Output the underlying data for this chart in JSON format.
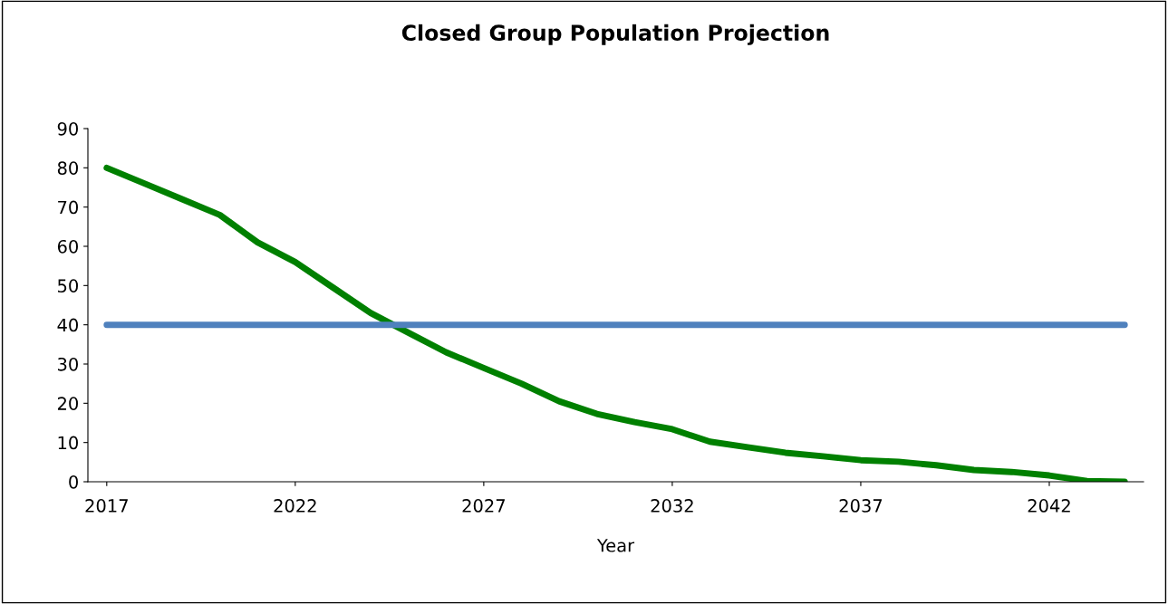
{
  "chart_data": {
    "type": "line",
    "title": "Closed Group Population Projection",
    "xlabel": "Year",
    "categories": [
      "2017",
      null,
      null,
      null,
      null,
      "2022",
      null,
      null,
      null,
      null,
      "2027",
      null,
      null,
      null,
      null,
      "2032",
      null,
      null,
      null,
      null,
      "2037",
      null,
      null,
      null,
      null,
      "2042",
      null,
      null
    ],
    "series": [
      {
        "color": "#008000",
        "values": [
          80,
          76,
          72,
          68,
          61,
          56,
          49.5,
          43,
          38,
          33,
          29,
          25,
          20.5,
          17.3,
          15.2,
          13.4,
          10.2,
          8.8,
          7.4,
          6.5,
          5.5,
          5.1,
          4.2,
          3.0,
          2.5,
          1.6,
          0.2,
          0
        ]
      },
      {
        "color": "#4f81bd",
        "values": [
          40,
          40,
          40,
          40,
          40,
          40,
          40,
          40,
          40,
          40,
          40,
          40,
          40,
          40,
          40,
          40,
          40,
          40,
          40,
          40,
          40,
          40,
          40,
          40,
          40,
          40,
          40,
          40
        ]
      }
    ],
    "ylim": [
      0,
      90
    ],
    "yticks": [
      0,
      10,
      20,
      30,
      40,
      50,
      60,
      70,
      80,
      90
    ],
    "grid": false
  }
}
